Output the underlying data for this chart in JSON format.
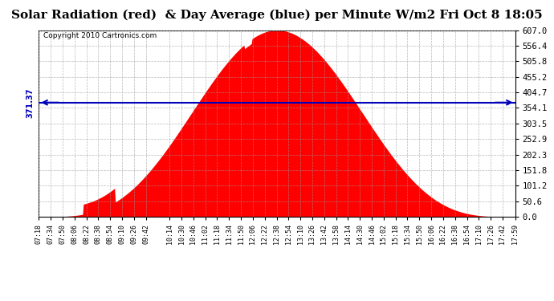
{
  "title": "Solar Radiation (red)  & Day Average (blue) per Minute W/m2 Fri Oct 8 18:05",
  "copyright": "Copyright 2010 Cartronics.com",
  "ymax": 607.0,
  "ymin": 0.0,
  "yticks": [
    0.0,
    50.6,
    101.2,
    151.8,
    202.3,
    252.9,
    303.5,
    354.1,
    404.7,
    455.2,
    505.8,
    556.4,
    607.0
  ],
  "average_value": 371.37,
  "fill_color": "#FF0000",
  "avg_line_color": "#0000BB",
  "background_color": "#FFFFFF",
  "plot_bg_color": "#FFFFFF",
  "grid_color": "#999999",
  "title_fontsize": 11,
  "start_minute": 438,
  "end_minute": 1079,
  "peak_minute": 730,
  "peak_value": 607.0,
  "x_tick_labels": [
    "07:18",
    "07:34",
    "07:50",
    "08:06",
    "08:22",
    "08:38",
    "08:54",
    "09:10",
    "09:26",
    "09:42",
    "10:14",
    "10:30",
    "10:46",
    "11:02",
    "11:18",
    "11:34",
    "11:50",
    "12:06",
    "12:22",
    "12:38",
    "12:54",
    "13:10",
    "13:26",
    "13:42",
    "13:58",
    "14:14",
    "14:30",
    "14:46",
    "15:02",
    "15:18",
    "15:34",
    "15:50",
    "16:06",
    "16:22",
    "16:38",
    "16:54",
    "17:10",
    "17:26",
    "17:42",
    "17:59"
  ],
  "x_tick_positions": [
    438,
    454,
    470,
    486,
    502,
    518,
    534,
    550,
    566,
    582,
    614,
    630,
    646,
    662,
    678,
    694,
    710,
    726,
    742,
    758,
    774,
    790,
    806,
    822,
    838,
    854,
    870,
    886,
    902,
    918,
    934,
    950,
    966,
    982,
    998,
    1014,
    1030,
    1046,
    1062,
    1079
  ]
}
